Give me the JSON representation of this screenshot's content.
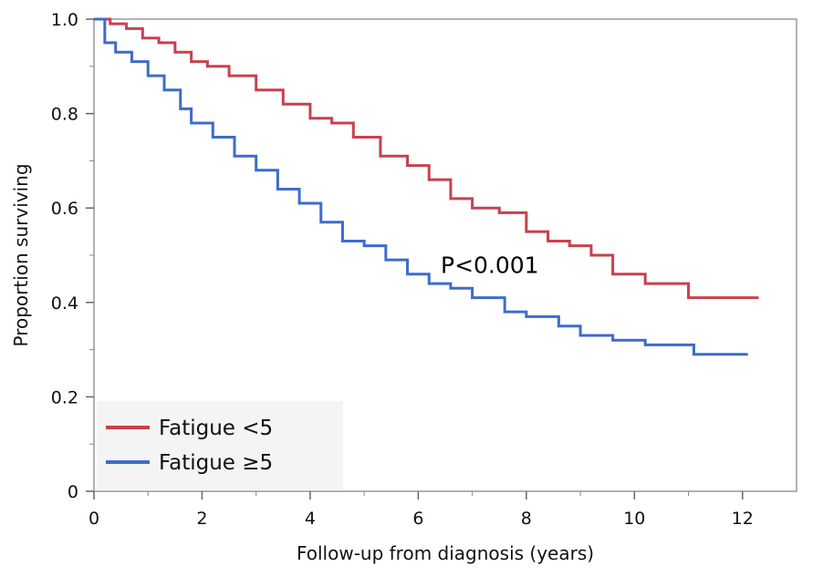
{
  "chart_data": {
    "type": "line",
    "step": true,
    "xlabel": "Follow-up from diagnosis (years)",
    "ylabel": "Proportion surviving",
    "xlim": [
      0,
      13
    ],
    "ylim": [
      0,
      1.0
    ],
    "xticks": [
      0,
      2,
      4,
      6,
      8,
      10,
      12
    ],
    "xtick_labels": [
      "0",
      "2",
      "4",
      "6",
      "8",
      "10",
      "12"
    ],
    "yticks": [
      0,
      0.2,
      0.4,
      0.6,
      0.8,
      1.0
    ],
    "ytick_labels": [
      "0",
      "0.2",
      "0.4",
      "0.6",
      "0.8",
      "1.0"
    ],
    "legend_position": "bottom-left",
    "annotation": {
      "text": "P<0.001",
      "x": 7.3,
      "y": 0.48
    },
    "series": [
      {
        "name": "Fatigue <5",
        "color": "#C8414E",
        "x": [
          0,
          0.3,
          0.6,
          0.9,
          1.2,
          1.5,
          1.8,
          2.1,
          2.5,
          3.0,
          3.5,
          4.0,
          4.4,
          4.8,
          5.3,
          5.8,
          6.2,
          6.6,
          7.0,
          7.5,
          8.0,
          8.4,
          8.8,
          9.2,
          9.6,
          10.2,
          11.0,
          12.3
        ],
        "y": [
          1.0,
          0.99,
          0.98,
          0.96,
          0.95,
          0.93,
          0.91,
          0.9,
          0.88,
          0.85,
          0.82,
          0.79,
          0.78,
          0.75,
          0.71,
          0.69,
          0.66,
          0.62,
          0.6,
          0.59,
          0.55,
          0.53,
          0.52,
          0.5,
          0.46,
          0.44,
          0.41,
          0.41
        ]
      },
      {
        "name": "Fatigue ≥5",
        "color": "#3D6CCB",
        "x": [
          0,
          0.2,
          0.4,
          0.7,
          1.0,
          1.3,
          1.6,
          1.8,
          2.2,
          2.6,
          3.0,
          3.4,
          3.8,
          4.2,
          4.6,
          5.0,
          5.4,
          5.8,
          6.2,
          6.6,
          7.0,
          7.6,
          8.0,
          8.6,
          9.0,
          9.6,
          10.2,
          11.1,
          12.1
        ],
        "y": [
          1.0,
          0.95,
          0.93,
          0.91,
          0.88,
          0.85,
          0.81,
          0.78,
          0.75,
          0.71,
          0.68,
          0.64,
          0.61,
          0.57,
          0.53,
          0.52,
          0.49,
          0.46,
          0.44,
          0.43,
          0.41,
          0.38,
          0.37,
          0.35,
          0.33,
          0.32,
          0.31,
          0.29,
          0.29
        ]
      }
    ]
  }
}
